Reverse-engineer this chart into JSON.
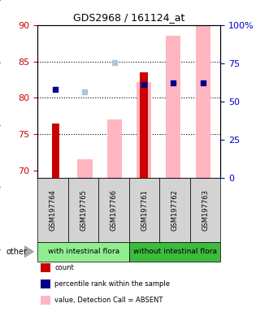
{
  "title": "GDS2968 / 161124_at",
  "samples": [
    "GSM197764",
    "GSM197765",
    "GSM197766",
    "GSM197761",
    "GSM197762",
    "GSM197763"
  ],
  "ylim_left": [
    69,
    90
  ],
  "ylim_right": [
    0,
    100
  ],
  "yticks_left": [
    70,
    75,
    80,
    85,
    90
  ],
  "yticks_right": [
    0,
    25,
    50,
    75,
    100
  ],
  "ytick_labels_right": [
    "0",
    "25",
    "50",
    "75",
    "100%"
  ],
  "dotted_lines": [
    75,
    80,
    85
  ],
  "bar_bottom": 69,
  "count_values": [
    76.5,
    null,
    null,
    83.5,
    null,
    null
  ],
  "count_color": "#cc0000",
  "absent_value_values": [
    null,
    71.5,
    77.0,
    82.2,
    88.5,
    90.0
  ],
  "absent_value_color": "#ffb6c1",
  "percentile_rank_values": [
    81.2,
    null,
    null,
    81.8,
    82.0,
    82.0
  ],
  "percentile_rank_color": "#00008b",
  "absent_rank_values": [
    null,
    80.8,
    84.8,
    null,
    null,
    null
  ],
  "absent_rank_color": "#b0c4de",
  "legend_items": [
    {
      "label": "count",
      "color": "#cc0000"
    },
    {
      "label": "percentile rank within the sample",
      "color": "#00008b"
    },
    {
      "label": "value, Detection Call = ABSENT",
      "color": "#ffb6c1"
    },
    {
      "label": "rank, Detection Call = ABSENT",
      "color": "#b0c4de"
    }
  ],
  "other_label": "other",
  "x_positions": [
    0,
    1,
    2,
    3,
    4,
    5
  ],
  "background_color": "#ffffff",
  "tick_color_left": "#cc0000",
  "tick_color_right": "#0000cc",
  "group1_label": "with intestinal flora",
  "group2_label": "without intestinal flora",
  "group1_color": "#90ee90",
  "group2_color": "#3dbb3d"
}
